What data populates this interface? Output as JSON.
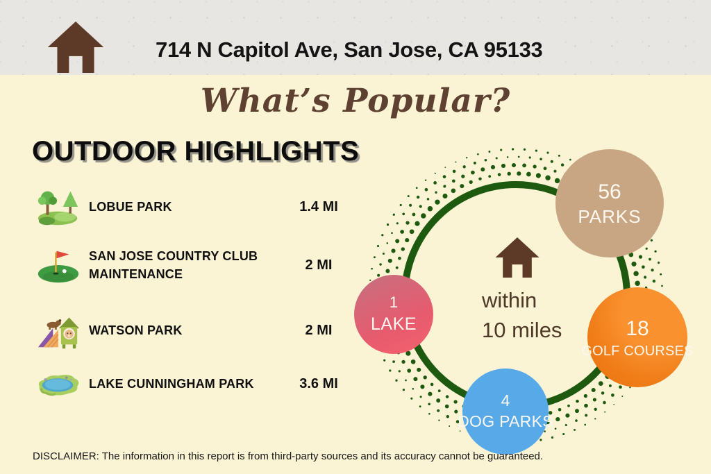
{
  "header": {
    "address": "714 N Capitol Ave, San Jose, CA 95133"
  },
  "title": "What’s Popular?",
  "section": {
    "title": "OUTDOOR HIGHLIGHTS"
  },
  "highlights": [
    {
      "icon": "park-icon",
      "name": "LOBUE PARK",
      "distance": "1.4 MI"
    },
    {
      "icon": "golf-icon",
      "name": "SAN JOSE COUNTRY CLUB MAINTENANCE",
      "distance": "2 MI"
    },
    {
      "icon": "dog-park-icon",
      "name": "WATSON PARK",
      "distance": "2 MI"
    },
    {
      "icon": "lake-icon",
      "name": "LAKE CUNNINGHAM PARK",
      "distance": "3.6 MI"
    }
  ],
  "radius_diagram": {
    "center": {
      "icon": "home-icon",
      "line1": "within",
      "line2": "10 miles"
    },
    "bubbles": [
      {
        "value": "56",
        "label": "PARKS",
        "color": "#c9a683"
      },
      {
        "value": "18",
        "label": "GOLF COURSES",
        "color": "#ef7c17"
      },
      {
        "value": "4",
        "label": "DOG PARKS",
        "color": "#57a9e8"
      },
      {
        "value": "1",
        "label": "LAKE",
        "color": "#ea5f6e"
      }
    ]
  },
  "disclaimer": "DISCLAIMER: The information in this report is from third-party sources and its accuracy cannot be guaranteed.",
  "colors": {
    "header_bg": "#e8e6e3",
    "page_bg": "#faf3d4",
    "brand_brown": "#5d3a27",
    "title_brown": "#5e4130",
    "center_text_brown": "#4e3827",
    "ring_green": "#1d5a0f",
    "text_black": "#111111"
  }
}
